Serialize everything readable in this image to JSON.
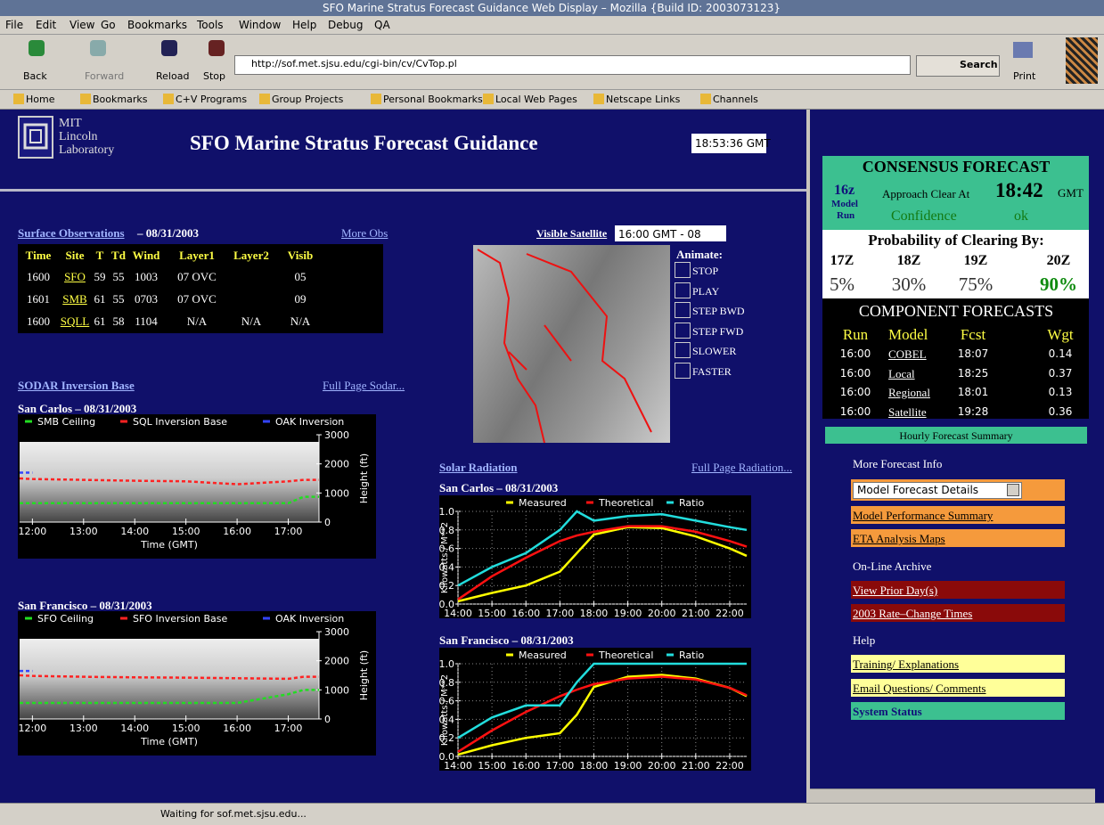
{
  "window": {
    "title": "SFO Marine Stratus Forecast Guidance Web Display – Mozilla {Build ID: 2003073123}",
    "menu": [
      "File",
      "Edit",
      "View",
      "Go",
      "Bookmarks",
      "Tools",
      "Window",
      "Help",
      "Debug",
      "QA"
    ],
    "toolbar": {
      "back": "Back",
      "forward": "Forward",
      "reload": "Reload",
      "stop": "Stop",
      "url": "http://sof.met.sjsu.edu/cgi-bin/cv/CvTop.pl",
      "search": "Search",
      "print": "Print"
    },
    "bookmarks": [
      "Home",
      "Bookmarks",
      "C+V Programs",
      "Group Projects",
      "Personal Bookmarks",
      "Local Web Pages",
      "Netscape Links",
      "Channels"
    ],
    "status": "Waiting for sof.met.sjsu.edu..."
  },
  "header": {
    "logo": [
      "MIT",
      "Lincoln",
      "Laboratory"
    ],
    "title": "SFO Marine Stratus Forecast Guidance",
    "clock": "18:53:36 GMT"
  },
  "surface": {
    "link": "Surface Observations",
    "date": " – 08/31/2003",
    "more": "More Obs",
    "columns": [
      "Time",
      "Site",
      "T",
      "Td",
      "Wind",
      "Layer1",
      "Layer2",
      "Visib"
    ],
    "rows": [
      [
        "1600",
        "SFO",
        "59",
        "55",
        "1003",
        "07 OVC",
        "",
        "05"
      ],
      [
        "1601",
        "SMB",
        "61",
        "55",
        "0703",
        "07 OVC",
        "",
        "09"
      ],
      [
        "1600",
        "SQLL",
        "61",
        "58",
        "1104",
        "N/A",
        "N/A",
        "N/A"
      ]
    ]
  },
  "sodar": {
    "link": "SODAR Inversion Base",
    "more": "Full Page Sodar...",
    "charts": [
      {
        "type": "line",
        "title": "San Carlos – 08/31/2003",
        "xlabel": "Time (GMT)",
        "ylabel": "Height (ft)",
        "xlim": [
          11.75,
          17.6
        ],
        "ylim": [
          0,
          3000
        ],
        "yticks": [
          0,
          1000,
          2000,
          3000
        ],
        "xticks": [
          {
            "value": 12,
            "label": "12:00"
          },
          {
            "value": 13,
            "label": "13:00"
          },
          {
            "value": 14,
            "label": "14:00"
          },
          {
            "value": 15,
            "label": "15:00"
          },
          {
            "value": 16,
            "label": "16:00"
          },
          {
            "value": 17,
            "label": "17:00"
          }
        ],
        "x": [
          11.75,
          12,
          13,
          14,
          15,
          16,
          17,
          17.3,
          17.6
        ],
        "series": [
          {
            "name": "SMB Ceiling",
            "color": "#22dd22",
            "values": [
              650,
              650,
              650,
              650,
              650,
              650,
              650,
              870,
              870
            ]
          },
          {
            "name": "SQL Inversion Base",
            "color": "#ff2222",
            "values": [
              1500,
              1480,
              1450,
              1420,
              1400,
              1300,
              1400,
              1450,
              1450
            ]
          },
          {
            "name": "OAK Inversion",
            "color": "#3344ff",
            "values": [
              1700,
              1700,
              null,
              null,
              null,
              null,
              null,
              null,
              null
            ]
          }
        ]
      },
      {
        "type": "line",
        "title": "San Francisco – 08/31/2003",
        "xlabel": "Time (GMT)",
        "ylabel": "Height (ft)",
        "xlim": [
          11.75,
          17.6
        ],
        "ylim": [
          0,
          3000
        ],
        "yticks": [
          0,
          1000,
          2000,
          3000
        ],
        "xticks": [
          {
            "value": 12,
            "label": "12:00"
          },
          {
            "value": 13,
            "label": "13:00"
          },
          {
            "value": 14,
            "label": "14:00"
          },
          {
            "value": 15,
            "label": "15:00"
          },
          {
            "value": 16,
            "label": "16:00"
          },
          {
            "value": 17,
            "label": "17:00"
          }
        ],
        "x": [
          11.75,
          12,
          13,
          14,
          15,
          16,
          17,
          17.3,
          17.6
        ],
        "series": [
          {
            "name": "SFO Ceiling",
            "color": "#22dd22",
            "values": [
              550,
              550,
              550,
              550,
              550,
              550,
              850,
              1000,
              1000
            ]
          },
          {
            "name": "SFO Inversion Base",
            "color": "#ff2222",
            "values": [
              1500,
              1480,
              1450,
              1430,
              1420,
              1400,
              1380,
              1450,
              1450
            ]
          },
          {
            "name": "OAK Inversion",
            "color": "#3344ff",
            "values": [
              1650,
              1650,
              null,
              null,
              null,
              null,
              null,
              null,
              null
            ]
          }
        ]
      }
    ]
  },
  "satellite": {
    "link": "Visible Satellite",
    "time": "16:00 GMT - 08",
    "animate": "Animate:",
    "controls": [
      "STOP",
      "PLAY",
      "STEP BWD",
      "STEP FWD",
      "SLOWER",
      "FASTER"
    ]
  },
  "solar": {
    "link": "Solar Radiation",
    "more": "Full Page Radiation...",
    "charts": [
      {
        "type": "line",
        "title": "San Carlos – 08/31/2003",
        "ylabel": "Kilowatts / M**2",
        "grid": true,
        "xlim": [
          14,
          22.5
        ],
        "ylim": [
          0,
          1
        ],
        "yticks": [
          {
            "value": 0,
            "label": "0.0"
          },
          {
            "value": 0.2,
            "label": "0.2"
          },
          {
            "value": 0.4,
            "label": "0.4"
          },
          {
            "value": 0.6,
            "label": "0.6"
          },
          {
            "value": 0.8,
            "label": "0.8"
          },
          {
            "value": 1,
            "label": "1.0"
          }
        ],
        "xticks": [
          {
            "value": 14,
            "label": "14:00"
          },
          {
            "value": 15,
            "label": "15:00"
          },
          {
            "value": 16,
            "label": "16:00"
          },
          {
            "value": 17,
            "label": "17:00"
          },
          {
            "value": 18,
            "label": "18:00"
          },
          {
            "value": 19,
            "label": "19:00"
          },
          {
            "value": 20,
            "label": "20:00"
          },
          {
            "value": 21,
            "label": "21:00"
          },
          {
            "value": 22,
            "label": "22:00"
          }
        ],
        "x": [
          14,
          15,
          16,
          17,
          17.5,
          18,
          19,
          20,
          21,
          22,
          22.5
        ],
        "series": [
          {
            "name": "Measured",
            "color": "#ffff00",
            "values": [
              0.03,
              0.12,
              0.2,
              0.35,
              0.55,
              0.75,
              0.83,
              0.82,
              0.73,
              0.6,
              0.52
            ]
          },
          {
            "name": "Theoretical",
            "color": "#ff1111",
            "values": [
              0.05,
              0.3,
              0.5,
              0.68,
              0.74,
              0.78,
              0.84,
              0.84,
              0.78,
              0.68,
              0.62
            ]
          },
          {
            "name": "Ratio",
            "color": "#22dddd",
            "values": [
              0.2,
              0.4,
              0.55,
              0.8,
              1.0,
              0.9,
              0.95,
              0.97,
              0.9,
              0.83,
              0.8
            ]
          }
        ]
      },
      {
        "type": "line",
        "title": "San Francisco – 08/31/2003",
        "ylabel": "Kilowatts / M**2",
        "grid": true,
        "xlim": [
          14,
          22.5
        ],
        "ylim": [
          0,
          1
        ],
        "yticks": [
          {
            "value": 0,
            "label": "0.0"
          },
          {
            "value": 0.2,
            "label": "0.2"
          },
          {
            "value": 0.4,
            "label": "0.4"
          },
          {
            "value": 0.6,
            "label": "0.6"
          },
          {
            "value": 0.8,
            "label": "0.8"
          },
          {
            "value": 1,
            "label": "1.0"
          }
        ],
        "xticks": [
          {
            "value": 14,
            "label": "14:00"
          },
          {
            "value": 15,
            "label": "15:00"
          },
          {
            "value": 16,
            "label": "16:00"
          },
          {
            "value": 17,
            "label": "17:00"
          },
          {
            "value": 18,
            "label": "18:00"
          },
          {
            "value": 19,
            "label": "19:00"
          },
          {
            "value": 20,
            "label": "20:00"
          },
          {
            "value": 21,
            "label": "21:00"
          },
          {
            "value": 22,
            "label": "22:00"
          }
        ],
        "x": [
          14,
          15,
          16,
          17,
          17.5,
          18,
          19,
          20,
          21,
          22,
          22.5
        ],
        "series": [
          {
            "name": "Measured",
            "color": "#ffff00",
            "values": [
              0.02,
              0.12,
              0.2,
              0.25,
              0.45,
              0.75,
              0.86,
              0.88,
              0.84,
              0.74,
              0.65
            ]
          },
          {
            "name": "Theoretical",
            "color": "#ff1111",
            "values": [
              0.05,
              0.28,
              0.48,
              0.65,
              0.72,
              0.78,
              0.84,
              0.86,
              0.83,
              0.74,
              0.66
            ]
          },
          {
            "name": "Ratio",
            "color": "#22dddd",
            "values": [
              0.2,
              0.42,
              0.55,
              0.55,
              0.8,
              1.0,
              1.0,
              1.0,
              1.0,
              1.0,
              1.0
            ]
          }
        ]
      }
    ]
  },
  "consensus": {
    "title": "CONSENSUS FORECAST",
    "run": "16z",
    "run_label": [
      "Model",
      "Run"
    ],
    "approach": "Approach Clear At",
    "time": "18:42",
    "tz": "GMT",
    "confidence_label": "Confidence",
    "confidence": "ok",
    "prob_title": "Probability of Clearing By:",
    "prob_hours": [
      "17Z",
      "18Z",
      "19Z",
      "20Z"
    ],
    "prob_values": [
      "5%",
      "30%",
      "75%",
      "90%"
    ],
    "components_title": "COMPONENT FORECASTS",
    "components_columns": [
      "Run",
      "Model",
      "Fcst",
      "Wgt"
    ],
    "components_rows": [
      [
        "16:00",
        "COBEL",
        "18:07",
        "0.14"
      ],
      [
        "16:00",
        "Local",
        "18:25",
        "0.37"
      ],
      [
        "16:00",
        "Regional",
        "18:01",
        "0.13"
      ],
      [
        "16:00",
        "Satellite",
        "19:28",
        "0.36"
      ]
    ]
  },
  "side": {
    "hourly": "Hourly Forecast Summary",
    "more_info": "More Forecast Info",
    "select": "Model Forecast Details",
    "performance": "Model Performance Summary",
    "eta": "ETA Analysis Maps",
    "archive": "On-Line Archive",
    "prior": "View Prior Day(s)",
    "rate": "2003 Rate–Change Times",
    "help": "Help",
    "training": "Training/ Explanations",
    "email": "Email Questions/ Comments",
    "status": "System Status"
  }
}
